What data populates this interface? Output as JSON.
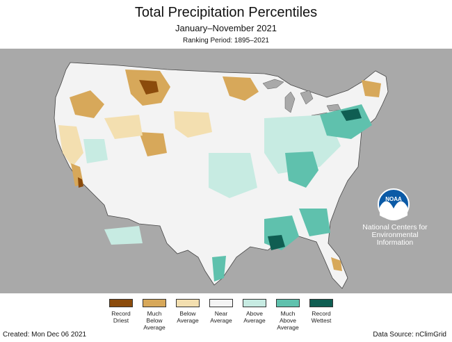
{
  "header": {
    "title": "Total Precipitation Percentiles",
    "subtitle": "January–November 2021",
    "ranking_period": "Ranking Period: 1895–2021"
  },
  "logo": {
    "text": "NOAA",
    "agency": "National Centers for\nEnvironmental\nInformation"
  },
  "colors": {
    "background": "#a9a9a9",
    "land": "#f2f2f2",
    "water": "#a9a9a9",
    "noaa_blue": "#0b5aa6"
  },
  "legend": [
    {
      "label": "Record\nDriest",
      "color": "#8b4b0c"
    },
    {
      "label": "Much\nBelow\nAverage",
      "color": "#d7a85a"
    },
    {
      "label": "Below\nAverage",
      "color": "#f3dfb0"
    },
    {
      "label": "Near\nAverage",
      "color": "#f4f4f4"
    },
    {
      "label": "Above\nAverage",
      "color": "#c7ebe2"
    },
    {
      "label": "Much\nAbove\nAverage",
      "color": "#5fc1ad"
    },
    {
      "label": "Record\nWettest",
      "color": "#0f5e52"
    }
  ],
  "footer": {
    "created": "Created: Mon Dec 06 2021",
    "source": "Data Source: nClimGrid"
  }
}
